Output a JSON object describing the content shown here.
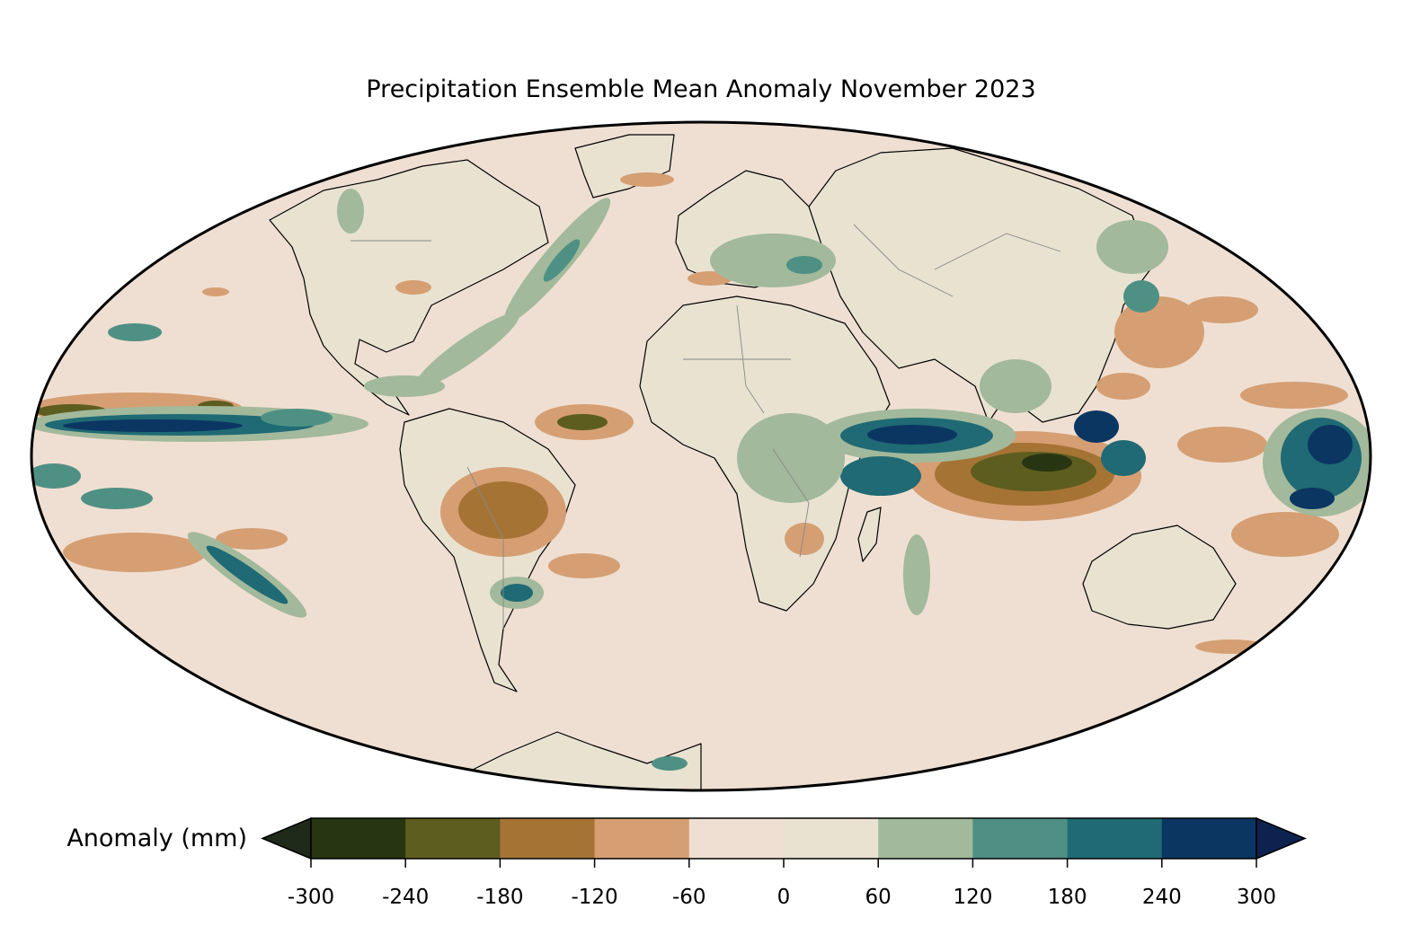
{
  "title": "Precipitation Ensemble Mean Anomaly November 2023",
  "colorbar": {
    "label": "Anomaly (mm)",
    "ticks": [
      "-300",
      "-240",
      "-180",
      "-120",
      "-60",
      "0",
      "60",
      "120",
      "180",
      "240",
      "300"
    ],
    "colors": [
      "#273512",
      "#5d5d1f",
      "#a57435",
      "#d59f73",
      "#efdfd2",
      "#e9e2d1",
      "#a2b99b",
      "#4f9084",
      "#1f6a74",
      "#0b3662"
    ],
    "under_color": "#1f2a1a",
    "over_color": "#0e2250",
    "extend": "both"
  },
  "map": {
    "projection": "mollweide",
    "ocean_base_color": "#efdfd2",
    "land_base_color": "#e9e2d1"
  }
}
